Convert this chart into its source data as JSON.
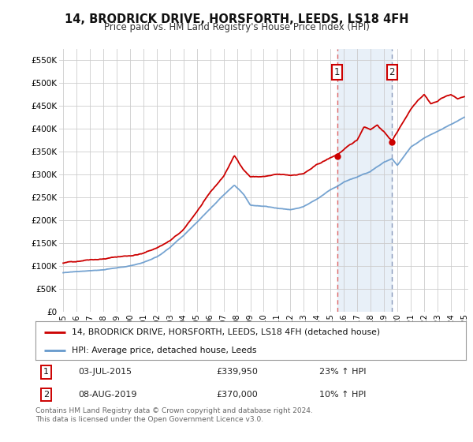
{
  "title": "14, BRODRICK DRIVE, HORSFORTH, LEEDS, LS18 4FH",
  "subtitle": "Price paid vs. HM Land Registry's House Price Index (HPI)",
  "legend_line1": "14, BRODRICK DRIVE, HORSFORTH, LEEDS, LS18 4FH (detached house)",
  "legend_line2": "HPI: Average price, detached house, Leeds",
  "annotation1_label": "1",
  "annotation1_date": "03-JUL-2015",
  "annotation1_price": "£339,950",
  "annotation1_hpi": "23% ↑ HPI",
  "annotation1_year": 2015.5,
  "annotation1_value": 339950,
  "annotation2_label": "2",
  "annotation2_date": "08-AUG-2019",
  "annotation2_price": "£370,000",
  "annotation2_hpi": "10% ↑ HPI",
  "annotation2_year": 2019.6,
  "annotation2_value": 370000,
  "price_color": "#cc0000",
  "hpi_line_color": "#6699cc",
  "hpi_fill_color": "#d8e8f5",
  "vline1_color": "#dd6666",
  "vline2_color": "#8899bb",
  "highlight_color": "#e8f0f8",
  "ylim_min": 0,
  "ylim_max": 575000,
  "background_color": "#ffffff",
  "grid_color": "#cccccc",
  "footer": "Contains HM Land Registry data © Crown copyright and database right 2024.\nThis data is licensed under the Open Government Licence v3.0."
}
